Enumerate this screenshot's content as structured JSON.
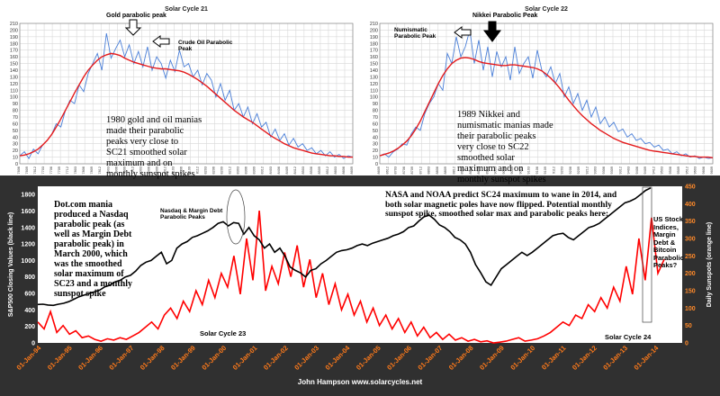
{
  "chart_data": [
    {
      "type": "line",
      "title": "Solar Cycle 21",
      "y_ticks": [
        0,
        10,
        20,
        30,
        40,
        50,
        60,
        70,
        80,
        90,
        100,
        110,
        120,
        130,
        140,
        150,
        160,
        170,
        180,
        190,
        200,
        210
      ],
      "ylim": [
        0,
        210
      ],
      "x_labels": [
        "7606",
        "7609",
        "7612",
        "7703",
        "7706",
        "7709",
        "7712",
        "7803",
        "7806",
        "7809",
        "7812",
        "7903",
        "7906",
        "7909",
        "7912",
        "8003",
        "8006",
        "8009",
        "8012",
        "8103",
        "8106",
        "8109",
        "8112",
        "8203",
        "8206",
        "8209",
        "8212",
        "8303",
        "8306",
        "8309",
        "8312",
        "8403",
        "8406",
        "8409",
        "8412",
        "8503",
        "8506",
        "8509",
        "8512",
        "8603",
        "8606",
        "8609"
      ],
      "series": [
        {
          "color": "#4a7fd8",
          "values": [
            12,
            18,
            8,
            22,
            15,
            28,
            35,
            44,
            60,
            55,
            80,
            95,
            90,
            118,
            108,
            135,
            150,
            165,
            140,
            195,
            158,
            172,
            185,
            160,
            178,
            150,
            168,
            145,
            175,
            140,
            160,
            150,
            128,
            155,
            138,
            170,
            145,
            150,
            130,
            140,
            118,
            135,
            125,
            100,
            120,
            95,
            110,
            80,
            90,
            70,
            85,
            60,
            75,
            55,
            62,
            40,
            52,
            35,
            45,
            28,
            38,
            25,
            30,
            20,
            24,
            15,
            20,
            12,
            18,
            10,
            14,
            8,
            12,
            10
          ]
        },
        {
          "color": "#e41a1c",
          "values": [
            12,
            13,
            15,
            18,
            22,
            28,
            35,
            44,
            55,
            67,
            80,
            93,
            106,
            118,
            130,
            140,
            148,
            155,
            160,
            163,
            165,
            164,
            162,
            158,
            155,
            152,
            150,
            148,
            146,
            144,
            143,
            142,
            142,
            141,
            140,
            139,
            137,
            134,
            130,
            126,
            121,
            116,
            110,
            104,
            98,
            92,
            86,
            80,
            75,
            70,
            66,
            62,
            57,
            52,
            47,
            42,
            38,
            34,
            30,
            27,
            24,
            22,
            20,
            18,
            16,
            15,
            14,
            13,
            12,
            12,
            11,
            11,
            10,
            10
          ]
        }
      ]
    },
    {
      "type": "line",
      "title": "Solar Cycle 22",
      "y_ticks": [
        0,
        10,
        20,
        30,
        40,
        50,
        60,
        70,
        80,
        90,
        100,
        110,
        120,
        130,
        140,
        150,
        160,
        170,
        180,
        190,
        200,
        210
      ],
      "ylim": [
        0,
        210
      ],
      "x_labels": [
        "8609",
        "8612",
        "8703",
        "8706",
        "8709",
        "8712",
        "8803",
        "8806",
        "8809",
        "8812",
        "8903",
        "8906",
        "8909",
        "8912",
        "9003",
        "9006",
        "9009",
        "9012",
        "9103",
        "9106",
        "9109",
        "9112",
        "9203",
        "9206",
        "9209",
        "9212",
        "9303",
        "9306",
        "9309",
        "9312",
        "9403",
        "9406",
        "9409",
        "9412",
        "9503",
        "9506",
        "9509",
        "9512",
        "9603",
        "9606",
        "9609"
      ],
      "series": [
        {
          "color": "#4a7fd8",
          "values": [
            12,
            15,
            10,
            18,
            22,
            30,
            28,
            45,
            55,
            50,
            75,
            90,
            100,
            120,
            110,
            165,
            150,
            190,
            160,
            175,
            200,
            150,
            185,
            140,
            175,
            130,
            168,
            145,
            160,
            125,
            175,
            135,
            150,
            160,
            128,
            170,
            140,
            130,
            145,
            120,
            135,
            100,
            115,
            90,
            105,
            80,
            95,
            70,
            85,
            60,
            70,
            55,
            62,
            48,
            52,
            40,
            45,
            35,
            38,
            30,
            32,
            25,
            28,
            20,
            22,
            15,
            18,
            12,
            15,
            10,
            12,
            8,
            10,
            8,
            9
          ]
        },
        {
          "color": "#e41a1c",
          "values": [
            12,
            14,
            16,
            19,
            23,
            28,
            34,
            42,
            52,
            64,
            78,
            92,
            106,
            120,
            132,
            142,
            150,
            155,
            158,
            159,
            158,
            156,
            153,
            151,
            150,
            149,
            148,
            147,
            147,
            148,
            148,
            147,
            146,
            145,
            144,
            142,
            139,
            134,
            128,
            121,
            113,
            104,
            95,
            87,
            79,
            72,
            66,
            60,
            55,
            50,
            46,
            42,
            38,
            35,
            32,
            30,
            28,
            26,
            24,
            22,
            20,
            19,
            18,
            17,
            16,
            15,
            14,
            13,
            12,
            11,
            11,
            10,
            10,
            10,
            9
          ]
        }
      ]
    },
    {
      "type": "line",
      "ylabel": "S&P500 Closing Values (black line)",
      "y2label": "Daily Sunspots (orange line)",
      "y_ticks": [
        0,
        200,
        400,
        600,
        800,
        1000,
        1200,
        1400,
        1600,
        1800
      ],
      "y2_ticks": [
        0,
        50,
        100,
        150,
        200,
        250,
        300,
        350,
        400,
        450
      ],
      "ylim": [
        0,
        1900
      ],
      "y2lim": [
        0,
        450
      ],
      "x_labels": [
        "01-Jan-94",
        "01-Jan-95",
        "01-Jan-96",
        "01-Jan-97",
        "01-Jan-98",
        "01-Jan-99",
        "01-Jan-00",
        "01-Jan-01",
        "01-Jan-02",
        "01-Jan-03",
        "01-Jan-04",
        "01-Jan-05",
        "01-Jan-06",
        "01-Jan-07",
        "01-Jan-08",
        "01-Jan-09",
        "01-Jan-10",
        "01-Jan-11",
        "01-Jan-12",
        "01-Jan-13",
        "01-Jan-14"
      ],
      "series": [
        {
          "color": "#000000",
          "values": [
            466,
            470,
            460,
            455,
            470,
            480,
            500,
            530,
            560,
            580,
            600,
            620,
            640,
            680,
            700,
            740,
            760,
            800,
            820,
            870,
            940,
            980,
            1000,
            1050,
            1100,
            960,
            1000,
            1150,
            1200,
            1230,
            1280,
            1300,
            1330,
            1360,
            1400,
            1450,
            1470,
            1420,
            1460,
            1450,
            1320,
            1400,
            1300,
            1250,
            1150,
            1200,
            1100,
            1150,
            1050,
            920,
            880,
            850,
            800,
            880,
            900,
            960,
            1000,
            1050,
            1100,
            1120,
            1130,
            1150,
            1180,
            1200,
            1180,
            1210,
            1230,
            1250,
            1270,
            1300,
            1320,
            1350,
            1400,
            1420,
            1480,
            1530,
            1550,
            1500,
            1430,
            1400,
            1350,
            1280,
            1250,
            1200,
            1100,
            950,
            850,
            740,
            700,
            800,
            900,
            950,
            1000,
            1050,
            1100,
            1060,
            1100,
            1150,
            1200,
            1250,
            1300,
            1320,
            1330,
            1280,
            1250,
            1300,
            1350,
            1400,
            1420,
            1450,
            1500,
            1550,
            1600,
            1650,
            1700,
            1720,
            1750,
            1800,
            1850,
            1880
          ]
        },
        {
          "color": "#ff0000",
          "values": [
            60,
            40,
            90,
            30,
            50,
            25,
            35,
            15,
            20,
            10,
            5,
            12,
            8,
            15,
            10,
            20,
            30,
            45,
            60,
            40,
            80,
            100,
            70,
            120,
            90,
            150,
            110,
            180,
            130,
            200,
            160,
            250,
            140,
            300,
            180,
            380,
            150,
            220,
            170,
            260,
            190,
            280,
            160,
            240,
            130,
            200,
            110,
            170,
            95,
            140,
            80,
            120,
            60,
            100,
            50,
            80,
            40,
            70,
            30,
            60,
            20,
            45,
            15,
            30,
            10,
            25,
            8,
            15,
            5,
            10,
            3,
            6,
            0,
            2,
            5,
            10,
            15,
            5,
            8,
            12,
            20,
            30,
            45,
            60,
            50,
            80,
            70,
            110,
            90,
            130,
            100,
            160,
            120,
            220,
            140,
            300,
            180,
            360,
            200,
            240
          ]
        }
      ]
    }
  ],
  "labels": {
    "sc21_title": "Solar Cycle 21",
    "sc22_title": "Solar Cycle 22",
    "gold_peak": "Gold parabolic peak",
    "crude_peak": "Crude Oil Parabolic\nPeak",
    "sc21_note": "1980 gold and oil manias\nmade their parabolic\npeaks very close to\nSC21 smoothed solar\nmaximum and on\nmonthly sunspot spikes",
    "nikkei_peak": "Nikkei Parabolic Peak",
    "numismatic_peak": "Numismatic\nParabolic Peak",
    "sc22_note": "1989 Nikkei and\nnumismatic manias made\ntheir parabolic peaks\nvery close to SC22\nsmoothed solar\nmaximum and on\nmonthly sunspot spikes",
    "dotcom_note": "Dot.com mania\nproduced a Nasdaq\nparabolic peak (as\nwell as Margin Debt\nparabolic peak) in\nMarch 2000, which\nwas the smoothed\nsolar maximum of\nSC23 and a monthly\nsunspot spike",
    "nasdaq_peaks": "Nasdaq & Margin Debt\nParabolic Peaks",
    "nasa_note": "NASA and NOAA predict SC24 maximum to wane in 2014, and\nboth solar magnetic poles have now flipped. Potential monthly\nsunspot spike, smoothed solar max and parabolic peaks here:",
    "us_stock_note": "US Stock\nIndices,\nMargin\nDebt &\nBitcoin\nParabolic\nPeaks?",
    "sc23_label": "Solar Cycle 23",
    "sc24_label": "Solar Cycle 24",
    "footer": "John Hampson     www.solarcycles.net"
  }
}
